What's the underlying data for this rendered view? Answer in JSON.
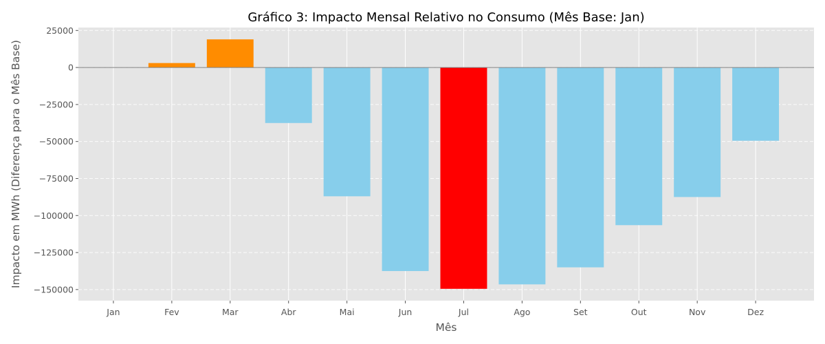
{
  "chart_data": {
    "type": "bar",
    "title": "Gráfico 3: Impacto Mensal Relativo no Consumo (Mês Base: Jan)",
    "xlabel": "Mês",
    "ylabel": "Impacto em MWh (Diferença para o Mês Base)",
    "categories": [
      "Jan",
      "Fev",
      "Mar",
      "Abr",
      "Mai",
      "Jun",
      "Jul",
      "Ago",
      "Set",
      "Out",
      "Nov",
      "Dez"
    ],
    "values": [
      0,
      3000,
      19000,
      -37500,
      -87000,
      -137500,
      -149500,
      -146500,
      -135000,
      -106500,
      -87500,
      -49500
    ],
    "bar_colors": [
      "#87CEEB",
      "#FF8C00",
      "#FF8C00",
      "#87CEEB",
      "#87CEEB",
      "#87CEEB",
      "#FF0000",
      "#87CEEB",
      "#87CEEB",
      "#87CEEB",
      "#87CEEB",
      "#87CEEB"
    ],
    "yticks": [
      25000,
      0,
      -25000,
      -50000,
      -75000,
      -100000,
      -125000,
      -150000
    ],
    "ylim": [
      -157500,
      27000
    ],
    "grid": true,
    "zero_line": true,
    "background_color": "#E5E5E5"
  }
}
